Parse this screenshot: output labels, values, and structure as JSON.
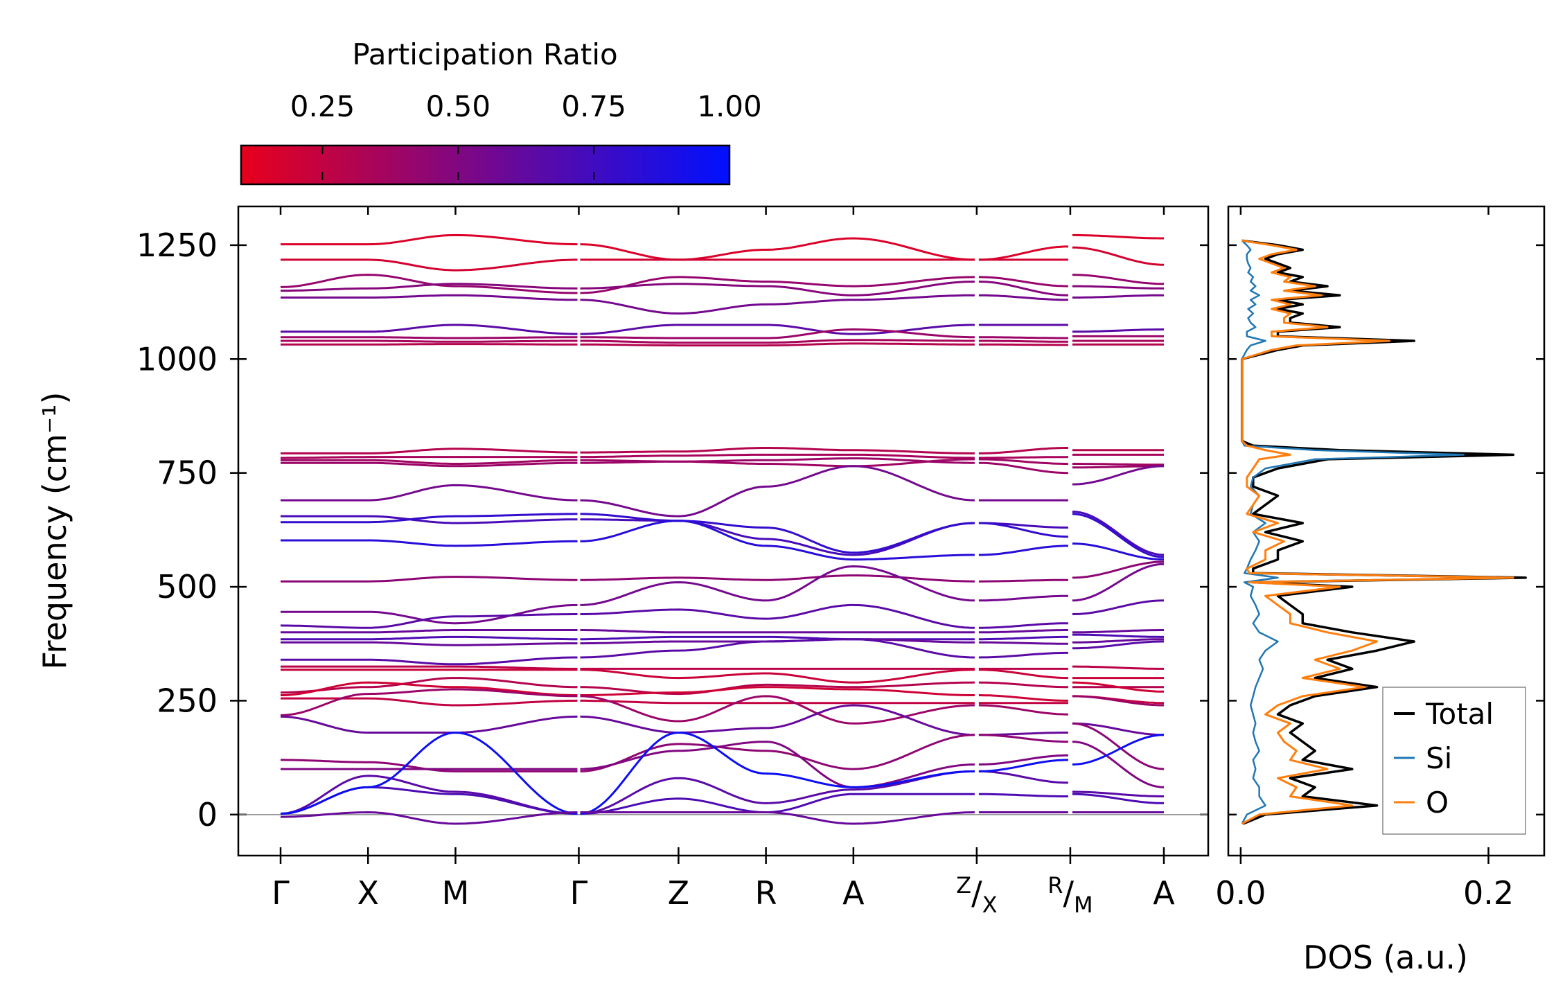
{
  "chart_data": [
    {
      "type": "line",
      "title": "",
      "name": "phonon-band-structure",
      "ylabel": "Frequency (cm⁻¹)",
      "ylim": [
        -90,
        1335
      ],
      "yticks": [
        0,
        250,
        500,
        750,
        1000,
        1250
      ],
      "ytick_labels": [
        "0",
        "250",
        "500",
        "750",
        "1000",
        "1250"
      ],
      "kpoint_labels": [
        "Γ",
        "X",
        "M",
        "Γ",
        "Z",
        "R",
        "A",
        "Z/X",
        "R/M",
        "A"
      ],
      "segments": [
        {
          "from": "Γ",
          "to": "X",
          "units": 1.0
        },
        {
          "from": "X",
          "to": "M",
          "units": 1.0
        },
        {
          "from": "M",
          "to": "Γ",
          "units": 1.41
        },
        {
          "from": "Γ",
          "to": "Z",
          "units": 1.14
        },
        {
          "from": "Z",
          "to": "R",
          "units": 1.0
        },
        {
          "from": "R",
          "to": "A",
          "units": 1.0
        },
        {
          "from": "A",
          "to": "Z",
          "units": 1.41
        },
        {
          "from": "X",
          "to": "R",
          "units": 1.07
        },
        {
          "from": "M",
          "to": "A",
          "units": 1.07
        }
      ],
      "branches": [
        {
          "id": "b01",
          "values": [
            1252,
            1252,
            1272,
            1252,
            1218,
            1240,
            1265,
            1218,
            1247,
            1272,
            1265
          ],
          "pr": 0.15
        },
        {
          "id": "b02",
          "values": [
            1218,
            1218,
            1195,
            1218,
            1218,
            1218,
            1218,
            1218,
            1218,
            1245,
            1207
          ],
          "pr": 0.18
        },
        {
          "id": "b03",
          "values": [
            1158,
            1185,
            1160,
            1145,
            1180,
            1170,
            1160,
            1180,
            1160,
            1185,
            1165
          ],
          "pr": 0.42
        },
        {
          "id": "b04",
          "values": [
            1150,
            1155,
            1165,
            1155,
            1165,
            1160,
            1140,
            1170,
            1140,
            1160,
            1155
          ],
          "pr": 0.48
        },
        {
          "id": "b05",
          "values": [
            1135,
            1135,
            1140,
            1130,
            1100,
            1120,
            1130,
            1140,
            1130,
            1135,
            1140
          ],
          "pr": 0.55
        },
        {
          "id": "b06",
          "values": [
            1060,
            1060,
            1075,
            1055,
            1075,
            1075,
            1055,
            1075,
            1075,
            1060,
            1065
          ],
          "pr": 0.65
        },
        {
          "id": "b07",
          "values": [
            1048,
            1048,
            1046,
            1048,
            1046,
            1046,
            1065,
            1048,
            1046,
            1050,
            1050
          ],
          "pr": 0.4
        },
        {
          "id": "b08",
          "values": [
            1040,
            1040,
            1038,
            1040,
            1036,
            1036,
            1042,
            1040,
            1038,
            1040,
            1040
          ],
          "pr": 0.35
        },
        {
          "id": "b09",
          "values": [
            1032,
            1032,
            1033,
            1032,
            1030,
            1030,
            1034,
            1032,
            1031,
            1032,
            1032
          ],
          "pr": 0.3
        },
        {
          "id": "b10",
          "values": [
            793,
            793,
            803,
            795,
            797,
            805,
            800,
            793,
            805,
            800,
            800
          ],
          "pr": 0.3
        },
        {
          "id": "b11",
          "values": [
            783,
            785,
            785,
            785,
            788,
            790,
            790,
            783,
            785,
            790,
            790
          ],
          "pr": 0.35
        },
        {
          "id": "b12",
          "values": [
            778,
            778,
            770,
            778,
            775,
            770,
            765,
            780,
            770,
            770,
            768
          ],
          "pr": 0.38
        },
        {
          "id": "b13",
          "values": [
            772,
            772,
            765,
            772,
            775,
            778,
            782,
            772,
            750,
            762,
            765
          ],
          "pr": 0.4
        },
        {
          "id": "b14",
          "values": [
            690,
            690,
            723,
            690,
            655,
            720,
            765,
            690,
            690,
            725,
            765
          ],
          "pr": 0.55
        },
        {
          "id": "b15",
          "values": [
            655,
            655,
            640,
            648,
            645,
            605,
            570,
            640,
            630,
            665,
            570
          ],
          "pr": 0.72
        },
        {
          "id": "b16",
          "values": [
            642,
            642,
            655,
            660,
            645,
            630,
            575,
            640,
            610,
            660,
            565
          ],
          "pr": 0.8
        },
        {
          "id": "b17",
          "values": [
            602,
            602,
            590,
            600,
            645,
            590,
            560,
            570,
            590,
            595,
            560
          ],
          "pr": 0.85
        },
        {
          "id": "b18",
          "values": [
            512,
            512,
            522,
            515,
            520,
            515,
            525,
            512,
            515,
            520,
            555
          ],
          "pr": 0.45
        },
        {
          "id": "b19",
          "values": [
            445,
            445,
            420,
            460,
            510,
            470,
            545,
            470,
            480,
            470,
            550
          ],
          "pr": 0.55
        },
        {
          "id": "b20",
          "values": [
            415,
            410,
            435,
            440,
            450,
            430,
            460,
            410,
            420,
            440,
            470
          ],
          "pr": 0.65
        },
        {
          "id": "b21",
          "values": [
            400,
            400,
            405,
            405,
            400,
            400,
            400,
            400,
            405,
            400,
            405
          ],
          "pr": 0.6
        },
        {
          "id": "b22",
          "values": [
            385,
            385,
            390,
            385,
            390,
            390,
            385,
            385,
            390,
            395,
            390
          ],
          "pr": 0.7
        },
        {
          "id": "b23",
          "values": [
            378,
            378,
            372,
            376,
            380,
            380,
            385,
            378,
            375,
            378,
            385
          ],
          "pr": 0.6
        },
        {
          "id": "b24",
          "values": [
            340,
            340,
            330,
            345,
            360,
            380,
            385,
            345,
            355,
            365,
            380
          ],
          "pr": 0.65
        },
        {
          "id": "b25",
          "values": [
            325,
            325,
            325,
            320,
            320,
            320,
            320,
            320,
            320,
            325,
            320
          ],
          "pr": 0.28
        },
        {
          "id": "b26",
          "values": [
            318,
            318,
            318,
            318,
            300,
            310,
            290,
            318,
            300,
            300,
            300
          ],
          "pr": 0.22
        },
        {
          "id": "b27",
          "values": [
            268,
            280,
            300,
            280,
            265,
            285,
            280,
            290,
            280,
            280,
            280
          ],
          "pr": 0.3
        },
        {
          "id": "b28",
          "values": [
            262,
            290,
            280,
            262,
            268,
            280,
            275,
            262,
            250,
            290,
            270
          ],
          "pr": 0.2
        },
        {
          "id": "b29",
          "values": [
            255,
            255,
            240,
            250,
            245,
            245,
            245,
            245,
            245,
            260,
            245
          ],
          "pr": 0.25
        },
        {
          "id": "b30",
          "values": [
            218,
            265,
            275,
            260,
            205,
            260,
            200,
            240,
            220,
            260,
            240
          ],
          "pr": 0.4
        },
        {
          "id": "b31",
          "values": [
            215,
            180,
            180,
            215,
            180,
            190,
            240,
            175,
            180,
            200,
            175
          ],
          "pr": 0.6
        },
        {
          "id": "b32",
          "values": [
            120,
            115,
            95,
            95,
            155,
            140,
            100,
            175,
            160,
            200,
            100
          ],
          "pr": 0.45
        },
        {
          "id": "b33",
          "values": [
            100,
            100,
            100,
            100,
            140,
            160,
            60,
            110,
            130,
            160,
            60
          ],
          "pr": 0.5
        },
        {
          "id": "b34",
          "values": [
            2,
            85,
            50,
            2,
            80,
            25,
            55,
            95,
            70,
            50,
            40
          ],
          "pr": 0.65
        },
        {
          "id": "b35",
          "values": [
            2,
            60,
            45,
            2,
            35,
            5,
            45,
            45,
            40,
            45,
            25
          ],
          "pr": 0.7
        },
        {
          "id": "b36",
          "values": [
            2,
            60,
            180,
            2,
            180,
            90,
            60,
            95,
            120,
            110,
            175
          ],
          "pr": 0.95
        },
        {
          "id": "b37",
          "values": [
            -5,
            5,
            -20,
            5,
            5,
            5,
            -20,
            5,
            5,
            5,
            5
          ],
          "pr": 0.6
        }
      ]
    },
    {
      "type": "line",
      "title": "",
      "name": "density-of-states",
      "xlabel": "DOS (a.u.)",
      "xlim": [
        -0.01,
        0.245
      ],
      "xticks": [
        0.0,
        0.2
      ],
      "xtick_labels": [
        "0.0",
        "0.2"
      ],
      "ylim": [
        -90,
        1335
      ],
      "freq": [
        -20,
        0,
        20,
        40,
        60,
        80,
        100,
        120,
        140,
        160,
        180,
        200,
        220,
        240,
        260,
        280,
        300,
        320,
        340,
        360,
        380,
        400,
        420,
        440,
        460,
        480,
        500,
        510,
        520,
        530,
        540,
        560,
        580,
        600,
        620,
        640,
        660,
        680,
        700,
        720,
        740,
        760,
        780,
        790,
        800,
        810,
        820,
        850,
        900,
        950,
        1000,
        1020,
        1030,
        1040,
        1050,
        1060,
        1070,
        1080,
        1090,
        1100,
        1110,
        1120,
        1130,
        1140,
        1150,
        1160,
        1170,
        1180,
        1190,
        1200,
        1210,
        1220,
        1230,
        1240,
        1250,
        1260
      ],
      "series": [
        {
          "name": "Total",
          "color": "#000000",
          "values": [
            0.002,
            0.02,
            0.11,
            0.05,
            0.06,
            0.04,
            0.09,
            0.05,
            0.06,
            0.05,
            0.04,
            0.05,
            0.03,
            0.04,
            0.06,
            0.11,
            0.06,
            0.09,
            0.07,
            0.11,
            0.14,
            0.09,
            0.05,
            0.05,
            0.04,
            0.03,
            0.09,
            0.01,
            0.23,
            0.01,
            0.01,
            0.03,
            0.03,
            0.05,
            0.02,
            0.05,
            0.01,
            0.02,
            0.03,
            0.01,
            0.01,
            0.03,
            0.07,
            0.22,
            0.08,
            0.01,
            0.001,
            0.001,
            0.001,
            0.001,
            0.001,
            0.03,
            0.05,
            0.14,
            0.03,
            0.03,
            0.08,
            0.04,
            0.04,
            0.05,
            0.03,
            0.05,
            0.03,
            0.08,
            0.04,
            0.07,
            0.04,
            0.05,
            0.03,
            0.04,
            0.03,
            0.02,
            0.03,
            0.05,
            0.03,
            0.001
          ]
        },
        {
          "name": "Si",
          "color": "#1f77b4",
          "values": [
            0.001,
            0.005,
            0.02,
            0.015,
            0.015,
            0.01,
            0.012,
            0.01,
            0.015,
            0.012,
            0.01,
            0.012,
            0.01,
            0.008,
            0.01,
            0.012,
            0.015,
            0.018,
            0.015,
            0.02,
            0.03,
            0.015,
            0.01,
            0.015,
            0.012,
            0.008,
            0.01,
            0.003,
            0.03,
            0.003,
            0.005,
            0.008,
            0.012,
            0.015,
            0.01,
            0.02,
            0.008,
            0.01,
            0.015,
            0.008,
            0.01,
            0.02,
            0.06,
            0.18,
            0.06,
            0.003,
            0.001,
            0.001,
            0.001,
            0.001,
            0.001,
            0.005,
            0.008,
            0.02,
            0.005,
            0.005,
            0.012,
            0.008,
            0.006,
            0.01,
            0.006,
            0.012,
            0.008,
            0.015,
            0.008,
            0.012,
            0.008,
            0.01,
            0.006,
            0.008,
            0.006,
            0.005,
            0.005,
            0.008,
            0.005,
            0.001
          ]
        },
        {
          "name": "O",
          "color": "#ff7f0e",
          "values": [
            0.001,
            0.015,
            0.09,
            0.04,
            0.045,
            0.03,
            0.07,
            0.04,
            0.045,
            0.035,
            0.03,
            0.04,
            0.02,
            0.03,
            0.05,
            0.1,
            0.05,
            0.08,
            0.06,
            0.09,
            0.11,
            0.07,
            0.04,
            0.04,
            0.03,
            0.02,
            0.08,
            0.007,
            0.22,
            0.007,
            0.005,
            0.02,
            0.02,
            0.035,
            0.01,
            0.03,
            0.005,
            0.01,
            0.015,
            0.005,
            0.005,
            0.01,
            0.015,
            0.04,
            0.02,
            0.005,
            0.001,
            0.001,
            0.001,
            0.001,
            0.001,
            0.025,
            0.045,
            0.12,
            0.025,
            0.025,
            0.07,
            0.035,
            0.035,
            0.04,
            0.025,
            0.04,
            0.025,
            0.065,
            0.035,
            0.06,
            0.035,
            0.04,
            0.025,
            0.035,
            0.025,
            0.015,
            0.025,
            0.045,
            0.025,
            0.001
          ]
        }
      ],
      "legend": {
        "placement": "bottom-right",
        "entries": [
          "Total",
          "Si",
          "O"
        ]
      }
    }
  ],
  "colorbar": {
    "label": "Participation Ratio",
    "range": [
      0.1,
      1.0
    ],
    "ticks": [
      0.25,
      0.5,
      0.75,
      1.0
    ],
    "tick_labels": [
      "0.25",
      "0.50",
      "0.75",
      "1.00"
    ],
    "color_low": "#e8001c",
    "color_high": "#0010ff"
  },
  "colors": {
    "zero_line": "#888888",
    "frame": "#000000"
  }
}
